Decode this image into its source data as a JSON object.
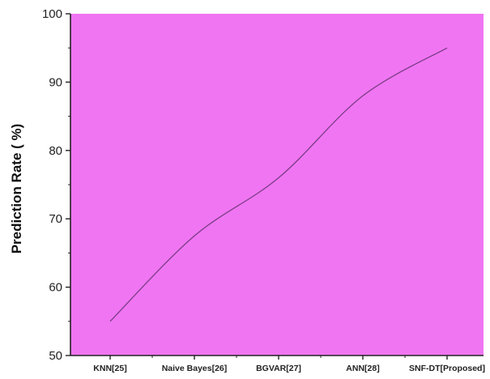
{
  "colors": {
    "plot_bg": "#f075f2",
    "line": "#7a3d86",
    "axis": "#222222"
  },
  "chart_data": {
    "type": "line",
    "categories": [
      "KNN[25]",
      "Naive Bayes[26]",
      "BGVAR[27]",
      "ANN[28]",
      "SNF-DT[Proposed]"
    ],
    "series": [
      {
        "values": [
          55,
          67.5,
          76,
          88,
          95
        ]
      }
    ],
    "ylabel": "Prediction Rate ( %)",
    "xlabel": "",
    "ylim": [
      50,
      100
    ],
    "yticks": [
      50,
      60,
      70,
      80,
      90,
      100
    ],
    "grid": false,
    "smooth": true
  }
}
